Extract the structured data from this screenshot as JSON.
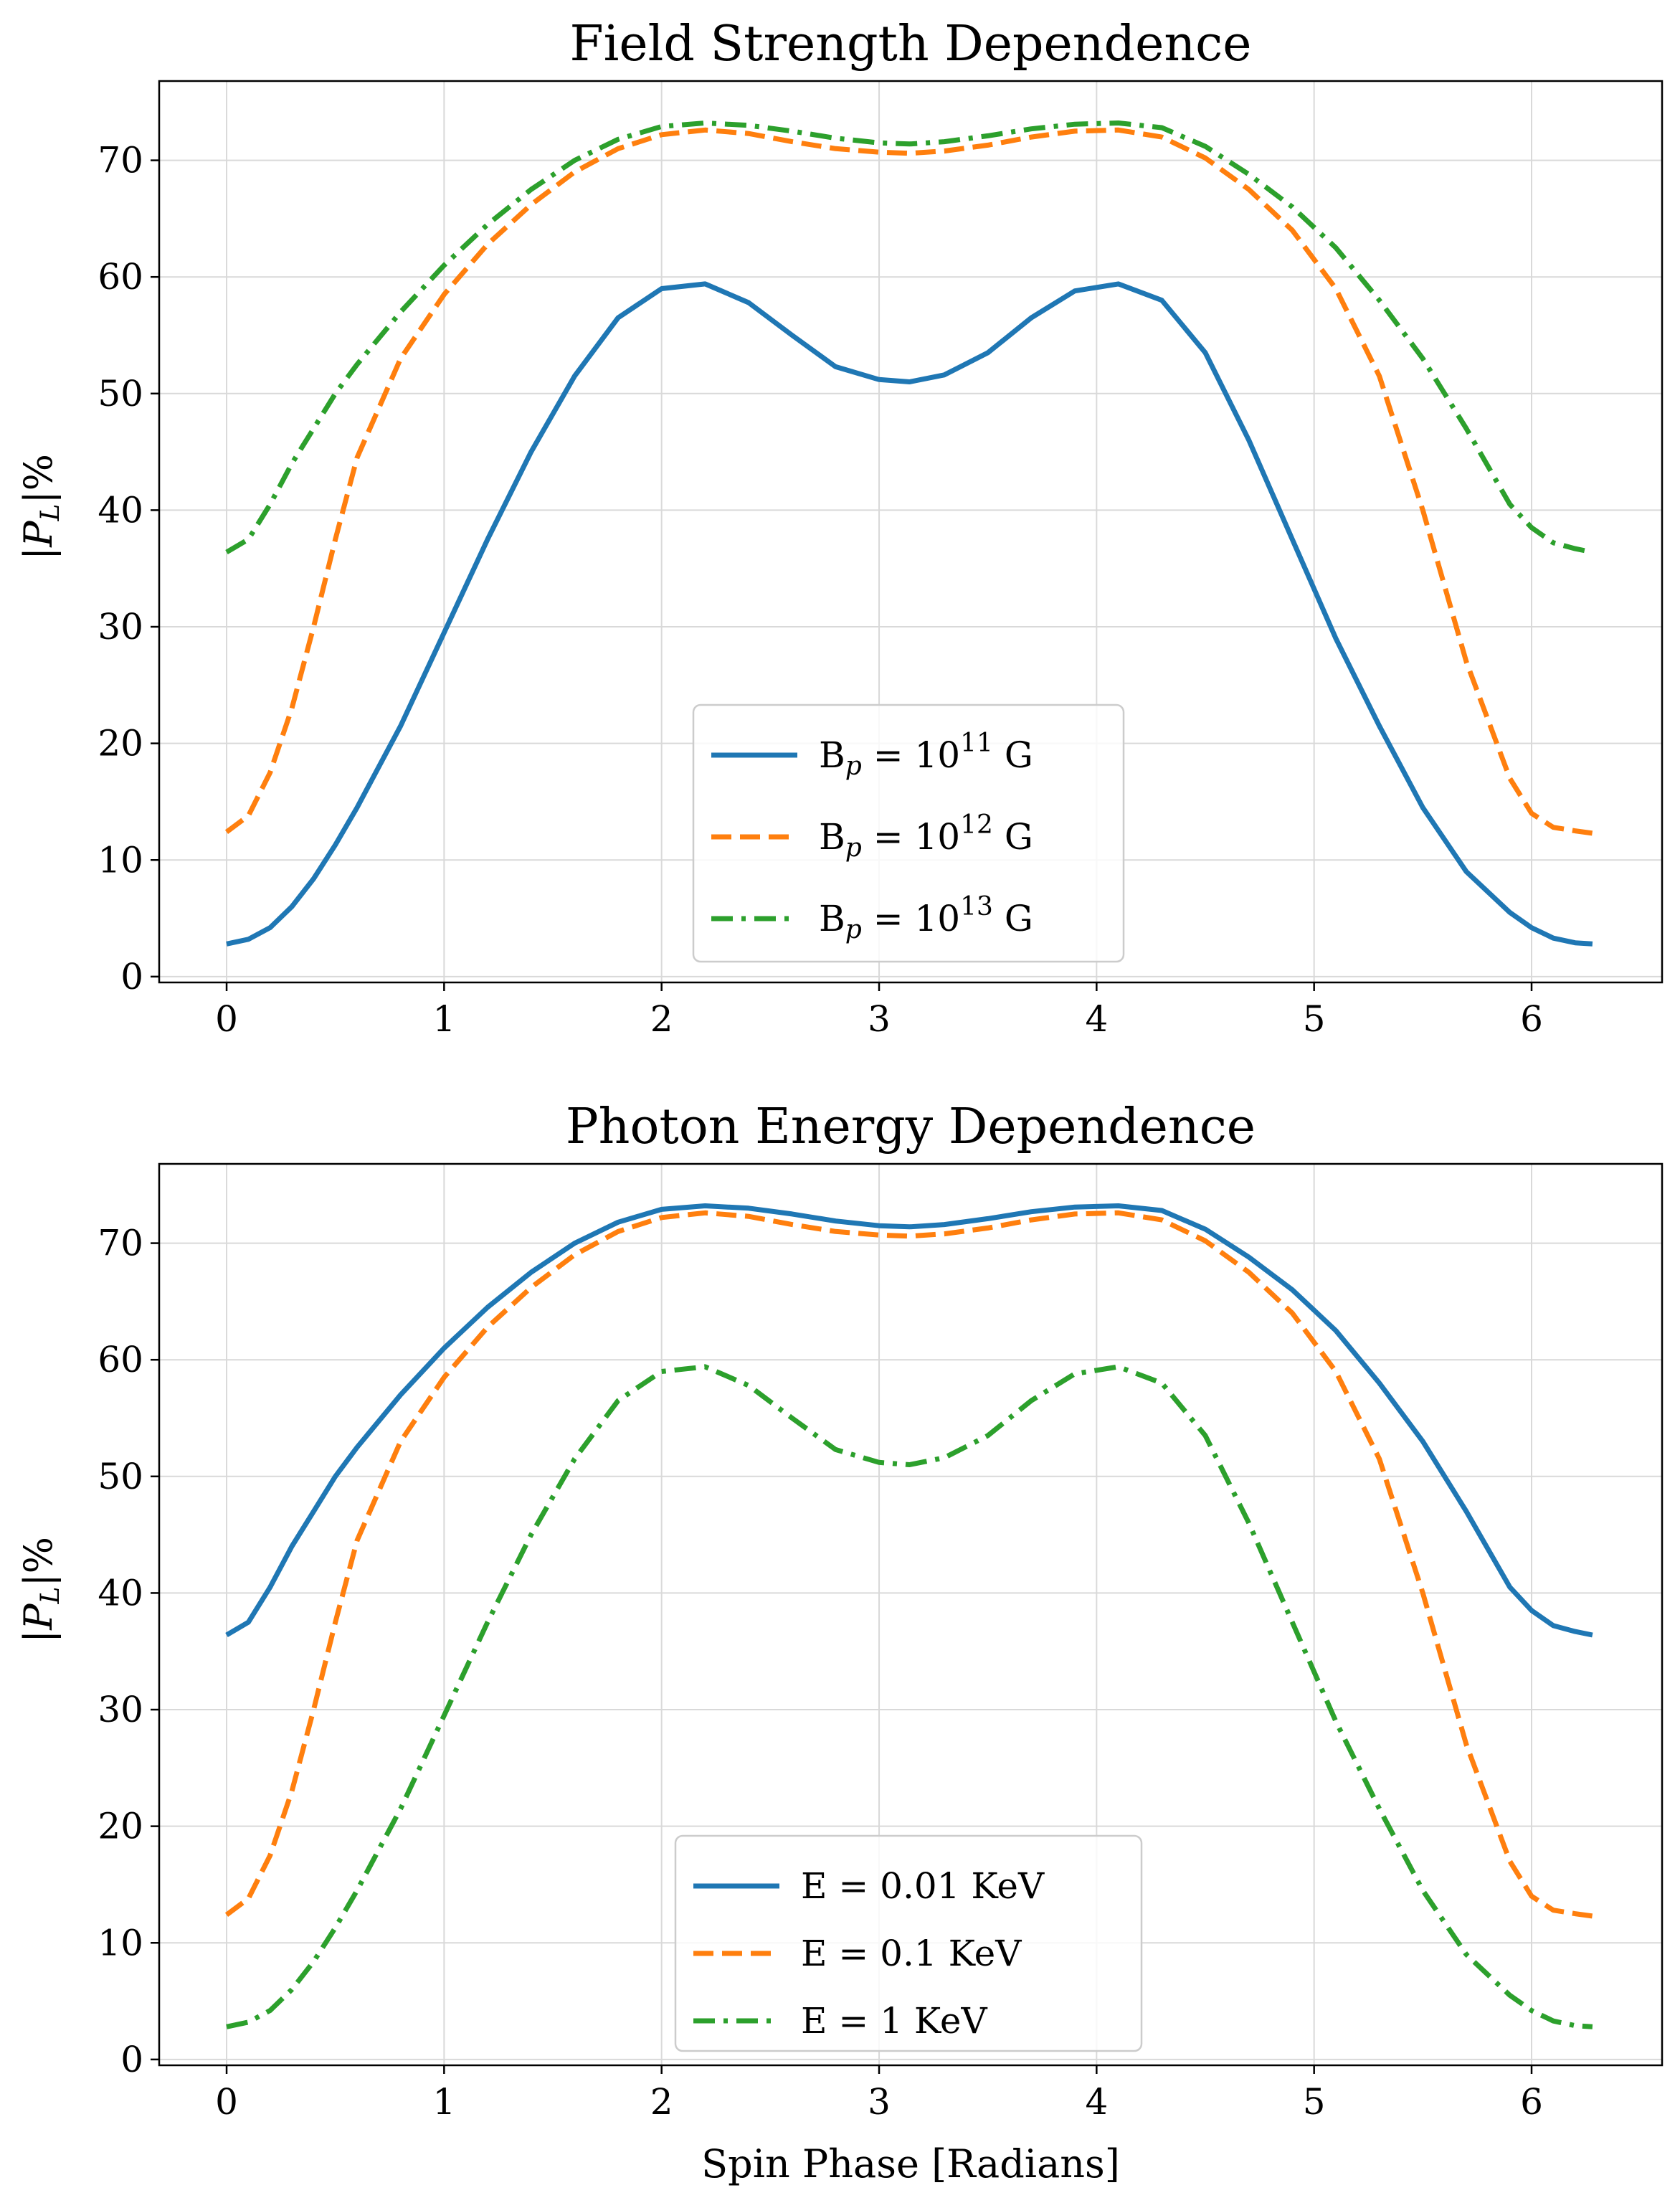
{
  "chart_data": [
    {
      "type": "line",
      "title": "Field Strength Dependence",
      "xlabel": "",
      "ylabel": "|P_L|%",
      "xlim": [
        -0.31,
        6.6
      ],
      "ylim": [
        -0.5,
        76.8
      ],
      "xticks": [
        "0",
        "1",
        "2",
        "3",
        "4",
        "5",
        "6"
      ],
      "yticks": [
        "0",
        "10",
        "20",
        "30",
        "40",
        "50",
        "60",
        "70"
      ],
      "grid": true,
      "legend_position": "lower center",
      "x": [
        0,
        0.1,
        0.2,
        0.3,
        0.4,
        0.5,
        0.6,
        0.8,
        1.0,
        1.2,
        1.4,
        1.6,
        1.8,
        2.0,
        2.2,
        2.4,
        2.6,
        2.8,
        3.0,
        3.14,
        3.3,
        3.5,
        3.7,
        3.9,
        4.1,
        4.3,
        4.5,
        4.7,
        4.9,
        5.1,
        5.3,
        5.5,
        5.7,
        5.9,
        6.0,
        6.1,
        6.2,
        6.28
      ],
      "series": [
        {
          "name": "B_p = 10^11 G",
          "name_parts": {
            "base": "B",
            "sub": "p",
            "mid": " = 10",
            "sup": "11",
            "end": " G"
          },
          "color": "#1f77b4",
          "style": "solid",
          "values": [
            2.8,
            3.2,
            4.2,
            6.0,
            8.4,
            11.3,
            14.5,
            21.5,
            29.5,
            37.5,
            45.0,
            51.5,
            56.5,
            59.0,
            59.4,
            57.8,
            55.0,
            52.3,
            51.2,
            51.0,
            51.6,
            53.5,
            56.5,
            58.8,
            59.4,
            58.0,
            53.5,
            46.0,
            37.5,
            29.0,
            21.5,
            14.5,
            9.0,
            5.5,
            4.2,
            3.3,
            2.9,
            2.8
          ]
        },
        {
          "name": "B_p = 10^12 G",
          "name_parts": {
            "base": "B",
            "sub": "p",
            "mid": " = 10",
            "sup": "12",
            "end": " G"
          },
          "color": "#ff7f0e",
          "style": "dashed",
          "values": [
            12.4,
            13.8,
            17.5,
            23.0,
            30.0,
            37.5,
            44.5,
            53.0,
            58.5,
            62.8,
            66.2,
            69.0,
            71.0,
            72.2,
            72.6,
            72.3,
            71.6,
            71.0,
            70.7,
            70.6,
            70.8,
            71.3,
            72.0,
            72.5,
            72.6,
            72.0,
            70.2,
            67.5,
            64.0,
            59.0,
            51.5,
            40.0,
            27.0,
            17.0,
            14.0,
            12.8,
            12.5,
            12.3
          ]
        },
        {
          "name": "B_p = 10^13 G",
          "name_parts": {
            "base": "B",
            "sub": "p",
            "mid": " = 10",
            "sup": "13",
            "end": " G"
          },
          "color": "#2ca02c",
          "style": "dashdot",
          "values": [
            36.4,
            37.5,
            40.5,
            44.0,
            47.0,
            50.0,
            52.5,
            57.0,
            61.0,
            64.5,
            67.5,
            70.0,
            71.8,
            72.9,
            73.2,
            73.0,
            72.5,
            71.9,
            71.5,
            71.4,
            71.6,
            72.1,
            72.7,
            73.1,
            73.2,
            72.8,
            71.2,
            68.8,
            66.0,
            62.5,
            58.0,
            53.0,
            47.0,
            40.5,
            38.5,
            37.2,
            36.7,
            36.4
          ]
        }
      ]
    },
    {
      "type": "line",
      "title": "Photon Energy Dependence",
      "xlabel": "Spin Phase [Radians]",
      "ylabel": "|P_L|%",
      "xlim": [
        -0.31,
        6.6
      ],
      "ylim": [
        -0.5,
        76.8
      ],
      "xticks": [
        "0",
        "1",
        "2",
        "3",
        "4",
        "5",
        "6"
      ],
      "yticks": [
        "0",
        "10",
        "20",
        "30",
        "40",
        "50",
        "60",
        "70"
      ],
      "grid": true,
      "legend_position": "lower center",
      "x": [
        0,
        0.1,
        0.2,
        0.3,
        0.4,
        0.5,
        0.6,
        0.8,
        1.0,
        1.2,
        1.4,
        1.6,
        1.8,
        2.0,
        2.2,
        2.4,
        2.6,
        2.8,
        3.0,
        3.14,
        3.3,
        3.5,
        3.7,
        3.9,
        4.1,
        4.3,
        4.5,
        4.7,
        4.9,
        5.1,
        5.3,
        5.5,
        5.7,
        5.9,
        6.0,
        6.1,
        6.2,
        6.28
      ],
      "series": [
        {
          "name": "E = 0.01 KeV",
          "color": "#1f77b4",
          "style": "solid",
          "values": [
            36.4,
            37.5,
            40.5,
            44.0,
            47.0,
            50.0,
            52.5,
            57.0,
            61.0,
            64.5,
            67.5,
            70.0,
            71.8,
            72.9,
            73.2,
            73.0,
            72.5,
            71.9,
            71.5,
            71.4,
            71.6,
            72.1,
            72.7,
            73.1,
            73.2,
            72.8,
            71.2,
            68.8,
            66.0,
            62.5,
            58.0,
            53.0,
            47.0,
            40.5,
            38.5,
            37.2,
            36.7,
            36.4
          ]
        },
        {
          "name": "E = 0.1 KeV",
          "color": "#ff7f0e",
          "style": "dashed",
          "values": [
            12.4,
            13.8,
            17.5,
            23.0,
            30.0,
            37.5,
            44.5,
            53.0,
            58.5,
            62.8,
            66.2,
            69.0,
            71.0,
            72.2,
            72.6,
            72.3,
            71.6,
            71.0,
            70.7,
            70.6,
            70.8,
            71.3,
            72.0,
            72.5,
            72.6,
            72.0,
            70.2,
            67.5,
            64.0,
            59.0,
            51.5,
            40.0,
            27.0,
            17.0,
            14.0,
            12.8,
            12.5,
            12.3
          ]
        },
        {
          "name": "E = 1 KeV",
          "color": "#2ca02c",
          "style": "dashdot",
          "values": [
            2.8,
            3.2,
            4.2,
            6.0,
            8.4,
            11.3,
            14.5,
            21.5,
            29.5,
            37.5,
            45.0,
            51.5,
            56.5,
            59.0,
            59.4,
            57.8,
            55.0,
            52.3,
            51.2,
            51.0,
            51.6,
            53.5,
            56.5,
            58.8,
            59.4,
            58.0,
            53.5,
            46.0,
            37.5,
            29.0,
            21.5,
            14.5,
            9.0,
            5.5,
            4.2,
            3.3,
            2.9,
            2.8
          ]
        }
      ]
    }
  ]
}
